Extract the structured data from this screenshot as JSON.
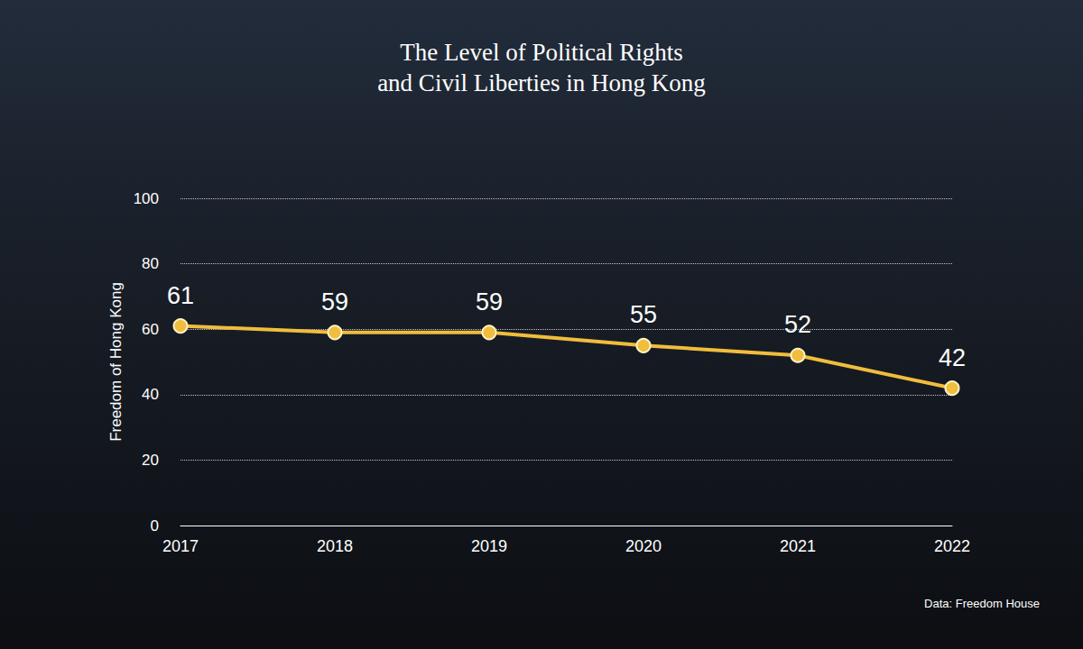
{
  "chart_data": {
    "type": "line",
    "title": "The Level of Political Rights and Civil Liberties in Hong Kong",
    "ylabel": "Freedom of Hong Kong",
    "source": "Data: Freedom House",
    "categories": [
      "2017",
      "2018",
      "2019",
      "2020",
      "2021",
      "2022"
    ],
    "values": [
      61,
      59,
      59,
      55,
      52,
      42
    ],
    "color": "#f0bd3c",
    "marker": "circle",
    "ylim": [
      0,
      100
    ],
    "yticks": [
      0,
      20,
      40,
      60,
      80,
      100
    ],
    "grid": true,
    "data_labels": true
  }
}
